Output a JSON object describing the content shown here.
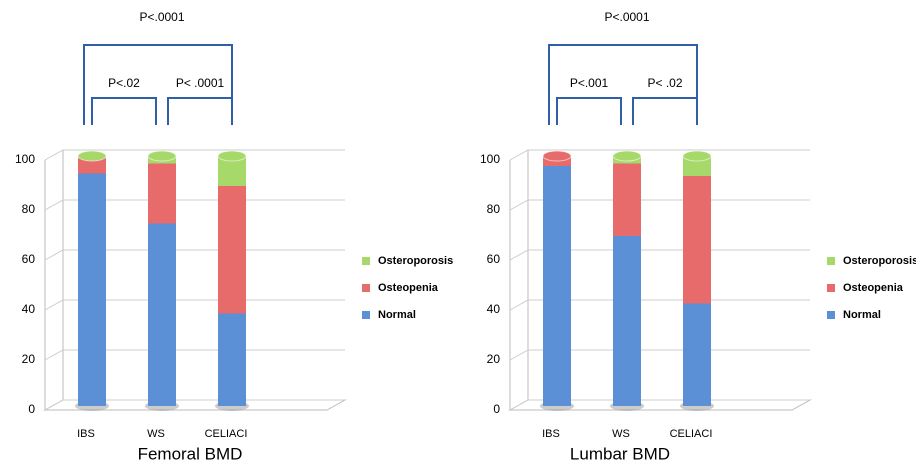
{
  "chart_data": [
    {
      "type": "bar",
      "stacked": true,
      "title": "Femoral BMD",
      "categories": [
        "IBS",
        "WS",
        "CELIACI"
      ],
      "series": [
        {
          "name": "Normal",
          "color": "#5b8fd6",
          "values": [
            93,
            73,
            37
          ]
        },
        {
          "name": "Osteopenia",
          "color": "#e86b6b",
          "values": [
            6,
            24,
            51
          ]
        },
        {
          "name": "Osteroporosis",
          "color": "#a6d96a",
          "values": [
            1,
            3,
            12
          ]
        }
      ],
      "ylim": [
        0,
        100
      ],
      "yticks": [
        0,
        20,
        40,
        60,
        80,
        100
      ],
      "grid": true,
      "annotations": [
        "P<.0001",
        "P<.02",
        "P< .0001"
      ]
    },
    {
      "type": "bar",
      "stacked": true,
      "title": "Lumbar BMD",
      "categories": [
        "IBS",
        "WS",
        "CELIACI"
      ],
      "series": [
        {
          "name": "Normal",
          "color": "#5b8fd6",
          "values": [
            96,
            68,
            41
          ]
        },
        {
          "name": "Osteopenia",
          "color": "#e86b6b",
          "values": [
            4,
            29,
            51
          ]
        },
        {
          "name": "Osteroporosis",
          "color": "#a6d96a",
          "values": [
            0,
            3,
            8
          ]
        }
      ],
      "ylim": [
        0,
        100
      ],
      "yticks": [
        0,
        20,
        40,
        60,
        80,
        100
      ],
      "grid": true,
      "annotations": [
        "P<.0001",
        "P<.001",
        "P< .02"
      ]
    }
  ]
}
